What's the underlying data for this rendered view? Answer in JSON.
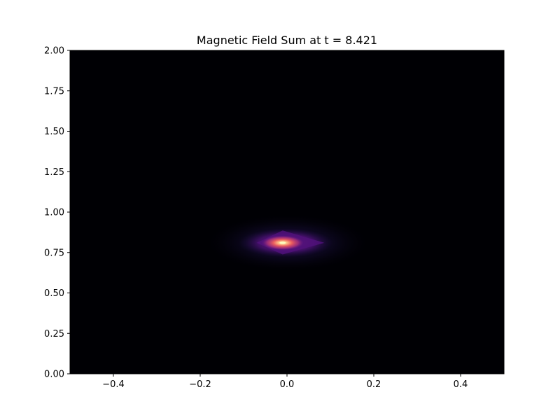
{
  "chart_data": {
    "type": "heatmap",
    "title": "Magnetic Field Sum at t = 8.421",
    "xlabel": "",
    "ylabel": "",
    "xlim": [
      -0.5,
      0.5
    ],
    "ylim": [
      0.0,
      2.0
    ],
    "x_ticks": [
      -0.4,
      -0.2,
      0.0,
      0.2,
      0.4
    ],
    "x_tick_labels": [
      "−0.4",
      "−0.2",
      "0.0",
      "0.2",
      "0.4"
    ],
    "y_ticks": [
      0.0,
      0.25,
      0.5,
      0.75,
      1.0,
      1.25,
      1.5,
      1.75,
      2.0
    ],
    "y_tick_labels": [
      "0.00",
      "0.25",
      "0.50",
      "0.75",
      "1.00",
      "1.25",
      "1.50",
      "1.75",
      "2.00"
    ],
    "colormap": "magma",
    "grid": false,
    "field_peak": {
      "x": -0.01,
      "y": 0.81
    },
    "field_extent": {
      "x_halfwidth": 0.08,
      "y_halfwidth": 0.09
    },
    "background_color": "#000004"
  }
}
